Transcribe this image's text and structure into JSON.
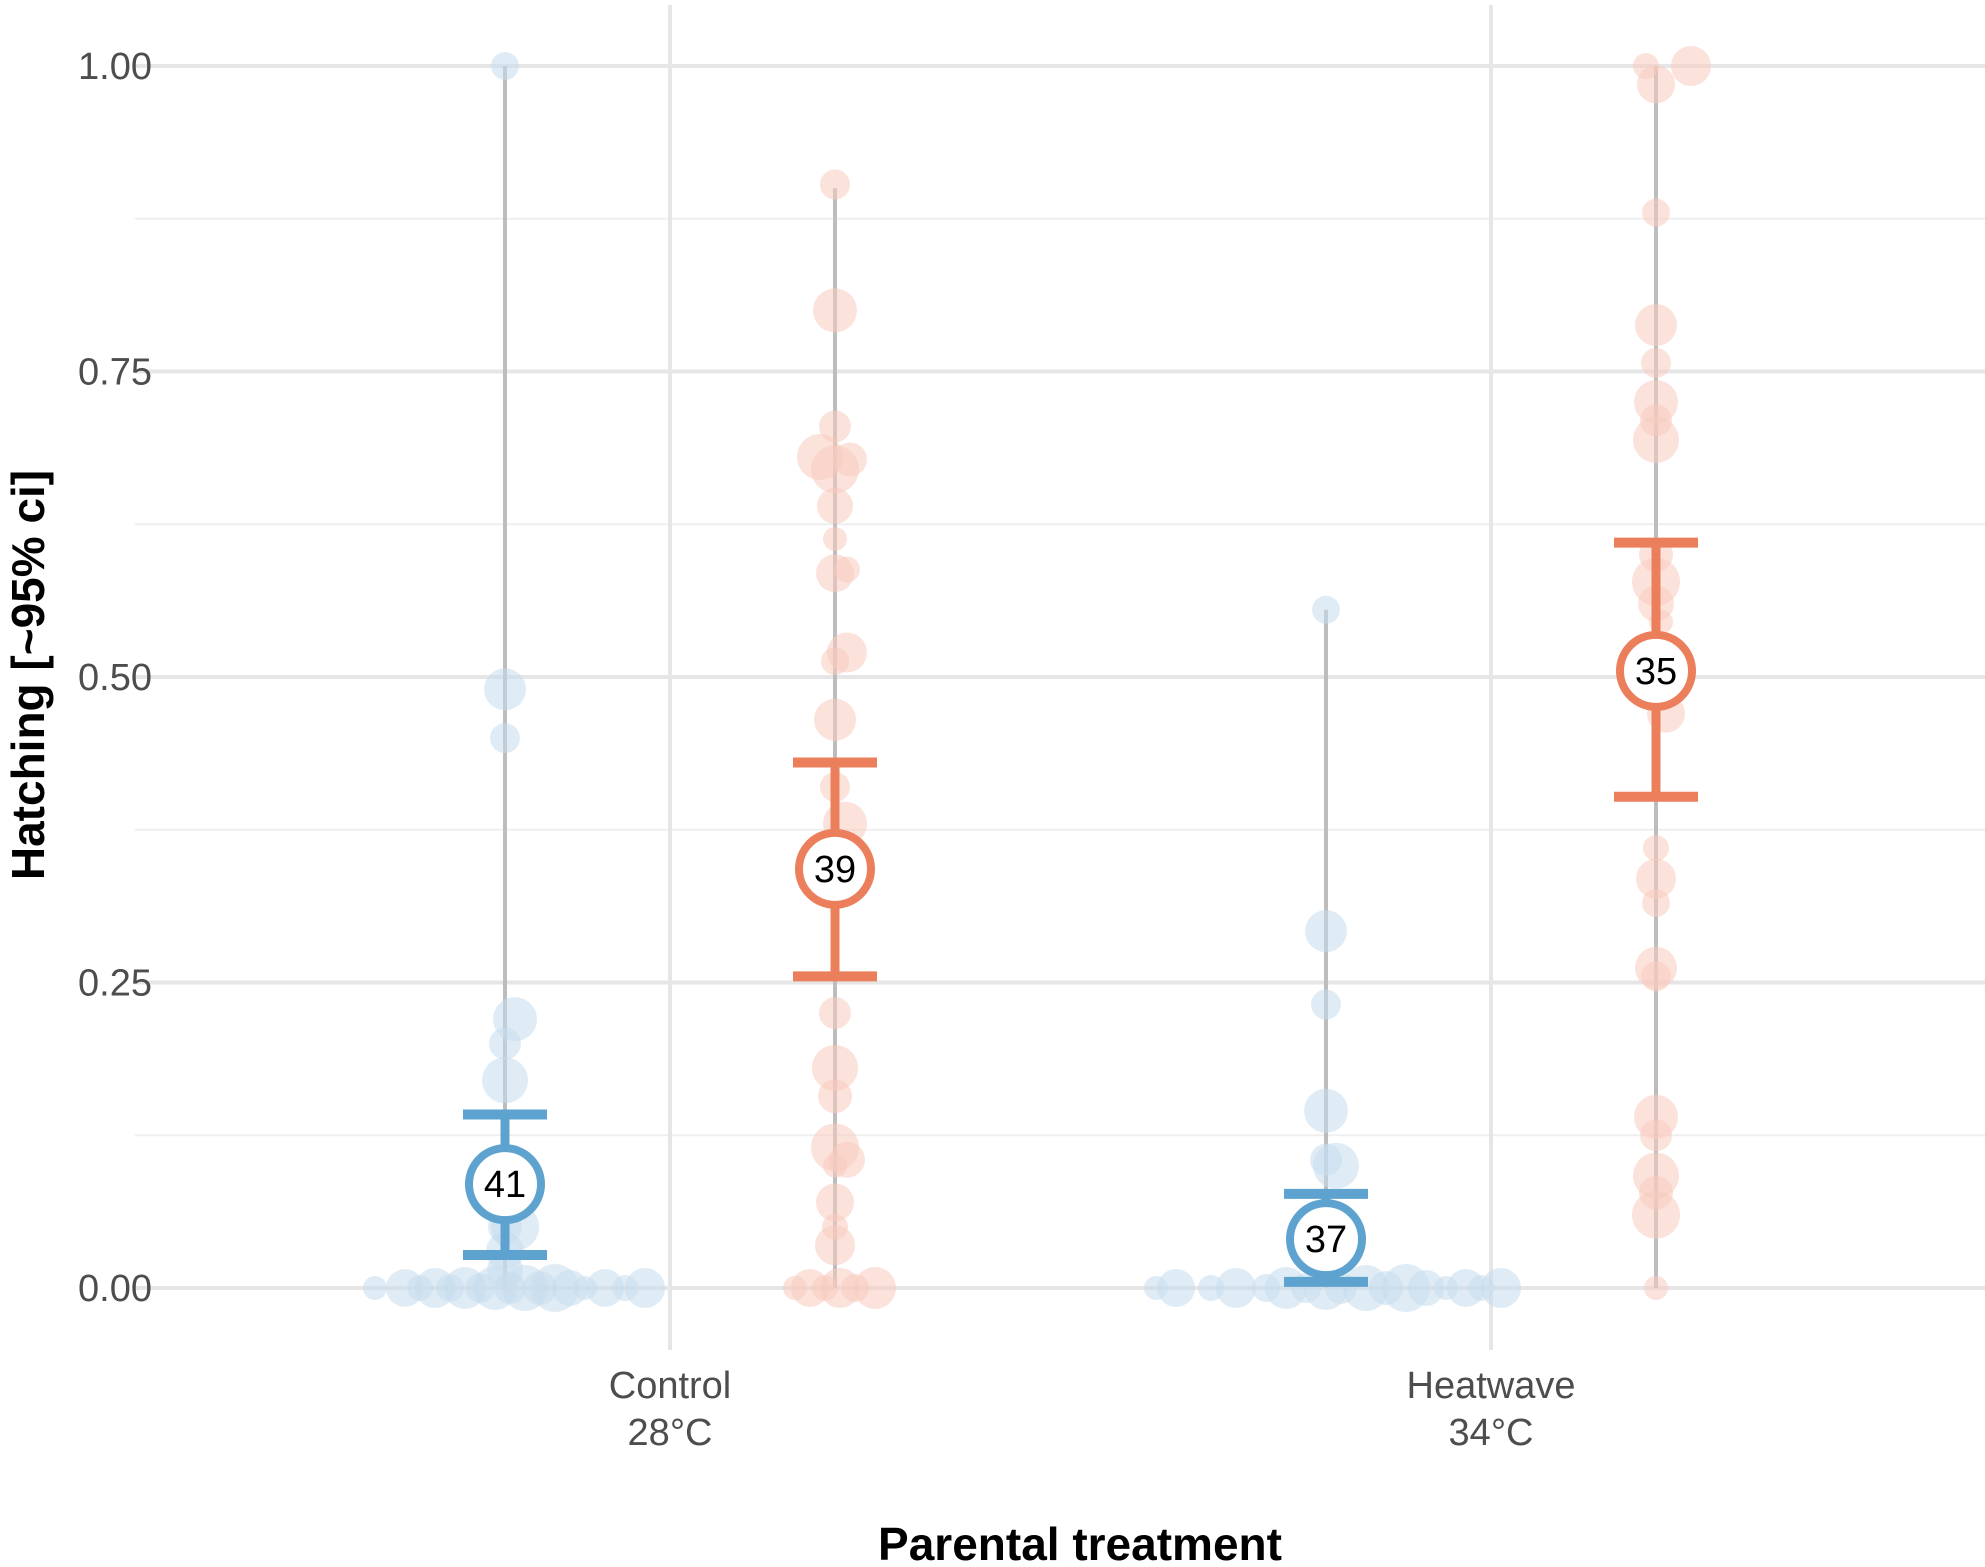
{
  "chart_data": {
    "type": "scatter",
    "xlabel": "Parental treatment",
    "ylabel": "Hatching [~95% ci]",
    "ylim": [
      0,
      1
    ],
    "y_ticks": [
      "0.00",
      "0.25",
      "0.50",
      "0.75",
      "1.00"
    ],
    "categories": [
      {
        "line1": "Control",
        "line2": "28°C"
      },
      {
        "line1": "Heatwave",
        "line2": "34°C"
      }
    ],
    "grid": true,
    "legend": "none",
    "colors": {
      "blue": "#5ea3cf",
      "orange": "#ec7f5b",
      "grey_line": "#bdbdbd",
      "grid": "#e6e6e6",
      "light_blue": "#c6dced",
      "light_orange": "#f8cbbd"
    },
    "groups": [
      {
        "category": 0,
        "position": "left",
        "color": "blue",
        "n": "41",
        "mean": 0.085,
        "ci_low": 0.027,
        "ci_high": 0.142,
        "range_min": 0.0,
        "range_max": 1.0,
        "points": [
          [
            -130,
            0
          ],
          [
            -100,
            0
          ],
          [
            -85,
            0
          ],
          [
            -70,
            0
          ],
          [
            -55,
            0
          ],
          [
            -40,
            0
          ],
          [
            -25,
            0
          ],
          [
            -10,
            0
          ],
          [
            5,
            0
          ],
          [
            20,
            0
          ],
          [
            35,
            0
          ],
          [
            50,
            0
          ],
          [
            65,
            0
          ],
          [
            80,
            0
          ],
          [
            100,
            0
          ],
          [
            120,
            0
          ],
          [
            140,
            0
          ],
          [
            0,
            1.0
          ],
          [
            0,
            0.49
          ],
          [
            0,
            0.45
          ],
          [
            10,
            0.22
          ],
          [
            0,
            0.2
          ],
          [
            0,
            0.17
          ],
          [
            0,
            0.05
          ],
          [
            10,
            0.05
          ],
          [
            0,
            0.015
          ],
          [
            0,
            0.1
          ],
          [
            0,
            0.03
          ]
        ]
      },
      {
        "category": 0,
        "position": "right",
        "color": "orange",
        "n": "39",
        "mean": 0.343,
        "ci_low": 0.255,
        "ci_high": 0.43,
        "range_min": 0.0,
        "range_max": 0.9,
        "points": [
          [
            -40,
            0
          ],
          [
            -25,
            0
          ],
          [
            -10,
            0
          ],
          [
            5,
            0
          ],
          [
            20,
            0
          ],
          [
            40,
            0
          ],
          [
            0,
            0.903
          ],
          [
            0,
            0.8
          ],
          [
            0,
            0.705
          ],
          [
            -15,
            0.68
          ],
          [
            15,
            0.678
          ],
          [
            0,
            0.67
          ],
          [
            0,
            0.64
          ],
          [
            0,
            0.613
          ],
          [
            0,
            0.585
          ],
          [
            12,
            0.588
          ],
          [
            12,
            0.52
          ],
          [
            0,
            0.513
          ],
          [
            0,
            0.465
          ],
          [
            0,
            0.41
          ],
          [
            10,
            0.38
          ],
          [
            0,
            0.225
          ],
          [
            0,
            0.18
          ],
          [
            0,
            0.157
          ],
          [
            0,
            0.115
          ],
          [
            12,
            0.105
          ],
          [
            0,
            0.1
          ],
          [
            0,
            0.07
          ],
          [
            0,
            0.05
          ],
          [
            0,
            0.035
          ]
        ]
      },
      {
        "category": 1,
        "position": "left",
        "color": "blue",
        "n": "37",
        "mean": 0.04,
        "ci_low": 0.005,
        "ci_high": 0.077,
        "range_min": 0.0,
        "range_max": 0.555,
        "points": [
          [
            -170,
            0
          ],
          [
            -150,
            0
          ],
          [
            -115,
            0
          ],
          [
            -90,
            0
          ],
          [
            -60,
            0
          ],
          [
            -40,
            0
          ],
          [
            -20,
            0
          ],
          [
            0,
            0
          ],
          [
            15,
            0
          ],
          [
            40,
            0
          ],
          [
            60,
            0
          ],
          [
            80,
            0
          ],
          [
            100,
            0
          ],
          [
            120,
            0
          ],
          [
            140,
            0
          ],
          [
            155,
            0
          ],
          [
            175,
            0
          ],
          [
            0,
            0.555
          ],
          [
            0,
            0.292
          ],
          [
            0,
            0.232
          ],
          [
            0,
            0.145
          ],
          [
            0,
            0.105
          ],
          [
            10,
            0.1
          ],
          [
            0,
            0.05
          ]
        ]
      },
      {
        "category": 1,
        "position": "right",
        "color": "orange",
        "n": "35",
        "mean": 0.505,
        "ci_low": 0.402,
        "ci_high": 0.61,
        "range_min": 0.0,
        "range_max": 1.0,
        "points": [
          [
            0,
            0
          ],
          [
            0,
            0.985
          ],
          [
            -10,
            1.0
          ],
          [
            35,
            1.0
          ],
          [
            0,
            0.88
          ],
          [
            0,
            0.788
          ],
          [
            0,
            0.757
          ],
          [
            0,
            0.725
          ],
          [
            0,
            0.71
          ],
          [
            0,
            0.694
          ],
          [
            0,
            0.6
          ],
          [
            0,
            0.578
          ],
          [
            0,
            0.56
          ],
          [
            5,
            0.545
          ],
          [
            10,
            0.47
          ],
          [
            0,
            0.36
          ],
          [
            0,
            0.335
          ],
          [
            0,
            0.315
          ],
          [
            0,
            0.262
          ],
          [
            0,
            0.255
          ],
          [
            0,
            0.14
          ],
          [
            0,
            0.125
          ],
          [
            0,
            0.092
          ],
          [
            0,
            0.078
          ],
          [
            0,
            0.06
          ]
        ]
      }
    ]
  }
}
